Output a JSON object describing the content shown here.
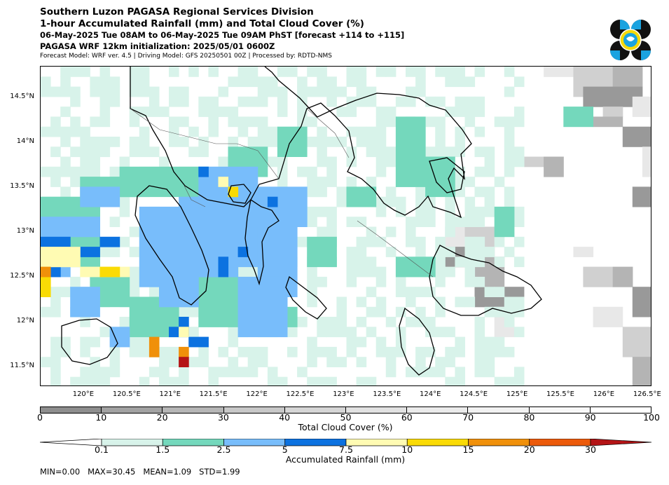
{
  "header": {
    "line1": "Southern Luzon PAGASA Regional Services Division",
    "line2": "1-hour Accumulated Rainfall (mm) and Total Cloud Cover (%)",
    "line3": "06-May-2025 Tue 08AM to 06-May-2025 Tue 09AM PhST [forecast +114 to +115]",
    "line4": "PAGASA WRF 12km initialization: 2025/05/01 0600Z",
    "line5": "Forecast Model: WRF ver. 4.5 | Driving Model: GFS 20250501 00Z | Processed by: RDTD-NMS"
  },
  "map": {
    "extent": {
      "lon_min": 119.5,
      "lon_max": 126.55,
      "lat_min": 11.28,
      "lat_max": 14.85
    },
    "lat_labels": [
      "14.5°N",
      "14°N",
      "13.5°N",
      "13°N",
      "12.5°N",
      "12°N",
      "11.5°N"
    ],
    "lat_values": [
      14.5,
      14.0,
      13.5,
      13.0,
      12.5,
      12.0,
      11.5
    ],
    "lon_labels": [
      "120°E",
      "120.5°E",
      "121°E",
      "121.5°E",
      "122°E",
      "122.5°E",
      "123°E",
      "123.5°E",
      "124°E",
      "124.5°E",
      "125°E",
      "125.5°E",
      "126°E",
      "126.5°E"
    ],
    "lon_values": [
      120,
      120.5,
      121,
      121.5,
      122,
      122.5,
      123,
      123.5,
      124,
      124.5,
      125,
      125.5,
      126,
      126.5
    ],
    "cloud_shading_colors": [
      "#e8e8e8",
      "#d0d0d0",
      "#b4b4b4",
      "#999999"
    ],
    "rain_colors": {
      "light": "#d8f3ea",
      "moderate": "#74d8bc",
      "heavy": "#78bdfb",
      "intense": "#0c72e0",
      "torrential": "#fffbb3",
      "extreme_yellow": "#fadb05",
      "orange": "#f0900a",
      "red": "#b41416"
    }
  },
  "cloud_colorbar": {
    "ticks": [
      "0",
      "10",
      "20",
      "30",
      "40",
      "50",
      "60",
      "70",
      "80",
      "90",
      "100"
    ],
    "label": "Total Cloud Cover (%)",
    "colors": [
      "#8e8e8e",
      "#a2a2a2",
      "#b6b6b6",
      "#c8c8c8",
      "#d6d6d6",
      "#e2e2e2",
      "#ebebeb",
      "#f2f2f2",
      "#f8f8f8",
      "#ffffff"
    ]
  },
  "rain_colorbar": {
    "ticks": [
      "0.1",
      "1.5",
      "2.5",
      "5",
      "7.5",
      "10",
      "15",
      "20",
      "30"
    ],
    "label": "Accumulated Rainfall (mm)",
    "colors": [
      "#ffffff",
      "#d8f3ea",
      "#74d8bc",
      "#78bdfb",
      "#0c72e0",
      "#fffbb3",
      "#fadb05",
      "#f0900a",
      "#ec5a0a",
      "#b41416"
    ]
  },
  "stats": {
    "text": "MIN=0.00   MAX=30.45   MEAN=1.09   STD=1.99"
  }
}
